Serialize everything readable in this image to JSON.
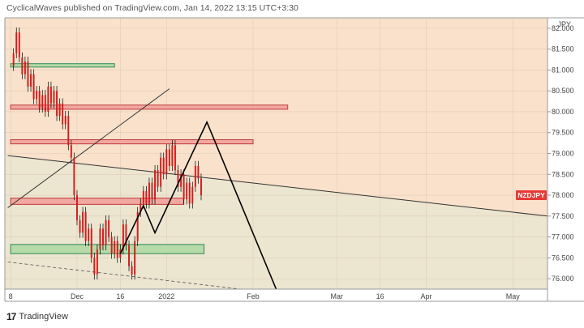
{
  "header": {
    "publisher_text": "CyclicalWaves published on TradingView.com, Jan 14, 2022 13:15 UTC+3:30"
  },
  "footer": {
    "brand": "TradingView",
    "logo_glyph": "17"
  },
  "colors": {
    "background_upper": "#f9e1cb",
    "background_lower": "#ece5d0",
    "candle": "#d21d1d",
    "wick": "#000000",
    "red_zone_fill": "#f0a8a0",
    "red_zone_border": "#c03a3a",
    "green_zone_fill": "#b7dba8",
    "green_zone_border": "#2e8b57",
    "price_tag": "#e53935"
  },
  "chart_data": {
    "type": "line",
    "symbol": "NZDJPY",
    "currency_label": "JPY",
    "y_ticks": [
      "82.000",
      "81.500",
      "81.000",
      "80.500",
      "80.000",
      "79.500",
      "79.000",
      "78.500",
      "78.000",
      "77.500",
      "77.000",
      "76.500",
      "76.000"
    ],
    "y_tick_values": [
      82.0,
      81.5,
      81.0,
      80.5,
      80.0,
      79.5,
      79.0,
      78.5,
      78.0,
      77.5,
      77.0,
      76.5,
      76.0
    ],
    "ylim": [
      75.75,
      82.25
    ],
    "x_ticks": [
      "8",
      "Dec",
      "16",
      "2022",
      "Feb",
      "Mar",
      "16",
      "Apr",
      "May"
    ],
    "x_tick_days": [
      0,
      23,
      38,
      54,
      84,
      113,
      128,
      144,
      174
    ],
    "xlim_days": [
      -2,
      186
    ],
    "grid": true,
    "last_price_label": "NZDJPY",
    "last_price": 78.0,
    "price_path": [
      [
        0,
        81.1
      ],
      [
        1,
        81.4
      ],
      [
        2,
        81.9
      ],
      [
        3,
        81.3
      ],
      [
        4,
        80.9
      ],
      [
        5,
        81.2
      ],
      [
        6,
        80.6
      ],
      [
        7,
        80.9
      ],
      [
        8,
        80.3
      ],
      [
        9,
        80.5
      ],
      [
        10,
        80.1
      ],
      [
        11,
        80.4
      ],
      [
        12,
        80.0
      ],
      [
        13,
        80.6
      ],
      [
        14,
        80.2
      ],
      [
        15,
        80.5
      ],
      [
        16,
        79.9
      ],
      [
        17,
        80.2
      ],
      [
        18,
        79.7
      ],
      [
        19,
        79.9
      ],
      [
        20,
        79.2
      ],
      [
        21,
        78.9
      ],
      [
        22,
        78.0
      ],
      [
        23,
        77.4
      ],
      [
        24,
        77.1
      ],
      [
        25,
        77.6
      ],
      [
        26,
        76.9
      ],
      [
        27,
        77.2
      ],
      [
        28,
        76.5
      ],
      [
        29,
        76.1
      ],
      [
        30,
        76.7
      ],
      [
        31,
        77.2
      ],
      [
        32,
        76.8
      ],
      [
        33,
        77.4
      ],
      [
        34,
        77.0
      ],
      [
        35,
        76.6
      ],
      [
        36,
        76.9
      ],
      [
        37,
        76.5
      ],
      [
        38,
        76.7
      ],
      [
        39,
        77.3
      ],
      [
        40,
        76.8
      ],
      [
        41,
        76.3
      ],
      [
        42,
        76.1
      ],
      [
        43,
        76.9
      ],
      [
        44,
        77.6
      ],
      [
        45,
        77.8
      ],
      [
        46,
        78.1
      ],
      [
        47,
        77.8
      ],
      [
        48,
        78.3
      ],
      [
        49,
        77.9
      ],
      [
        50,
        78.6
      ],
      [
        51,
        78.2
      ],
      [
        52,
        78.9
      ],
      [
        53,
        78.5
      ],
      [
        54,
        79.1
      ],
      [
        55,
        78.7
      ],
      [
        56,
        79.2
      ],
      [
        57,
        78.6
      ],
      [
        58,
        78.2
      ],
      [
        59,
        78.5
      ],
      [
        60,
        77.9
      ],
      [
        61,
        78.3
      ],
      [
        62,
        77.8
      ],
      [
        63,
        78.2
      ],
      [
        64,
        78.7
      ],
      [
        65,
        78.4
      ],
      [
        66,
        78.0
      ]
    ],
    "zones": [
      {
        "color": "green",
        "from_day": 0,
        "to_day": 36,
        "low": 81.07,
        "high": 81.15
      },
      {
        "color": "red",
        "from_day": 0,
        "to_day": 96,
        "low": 80.06,
        "high": 80.16
      },
      {
        "color": "red",
        "from_day": 0,
        "to_day": 84,
        "low": 79.23,
        "high": 79.33
      },
      {
        "color": "red",
        "from_day": 0,
        "to_day": 60,
        "low": 77.78,
        "high": 77.93
      },
      {
        "color": "green",
        "from_day": 0,
        "to_day": 67,
        "low": 76.6,
        "high": 76.82
      }
    ],
    "trendlines": [
      {
        "style": "solid",
        "from": [
          -1,
          77.7
        ],
        "to": [
          55,
          80.55
        ]
      },
      {
        "style": "solid",
        "from": [
          -1,
          78.95
        ],
        "to": [
          186,
          77.5
        ]
      },
      {
        "style": "dashed",
        "from": [
          -1,
          76.4
        ],
        "to": [
          92,
          75.65
        ]
      }
    ],
    "projection_path": [
      [
        38,
        76.6
      ],
      [
        46,
        77.75
      ],
      [
        50,
        77.1
      ],
      [
        68,
        79.75
      ],
      [
        92,
        75.75
      ]
    ]
  }
}
